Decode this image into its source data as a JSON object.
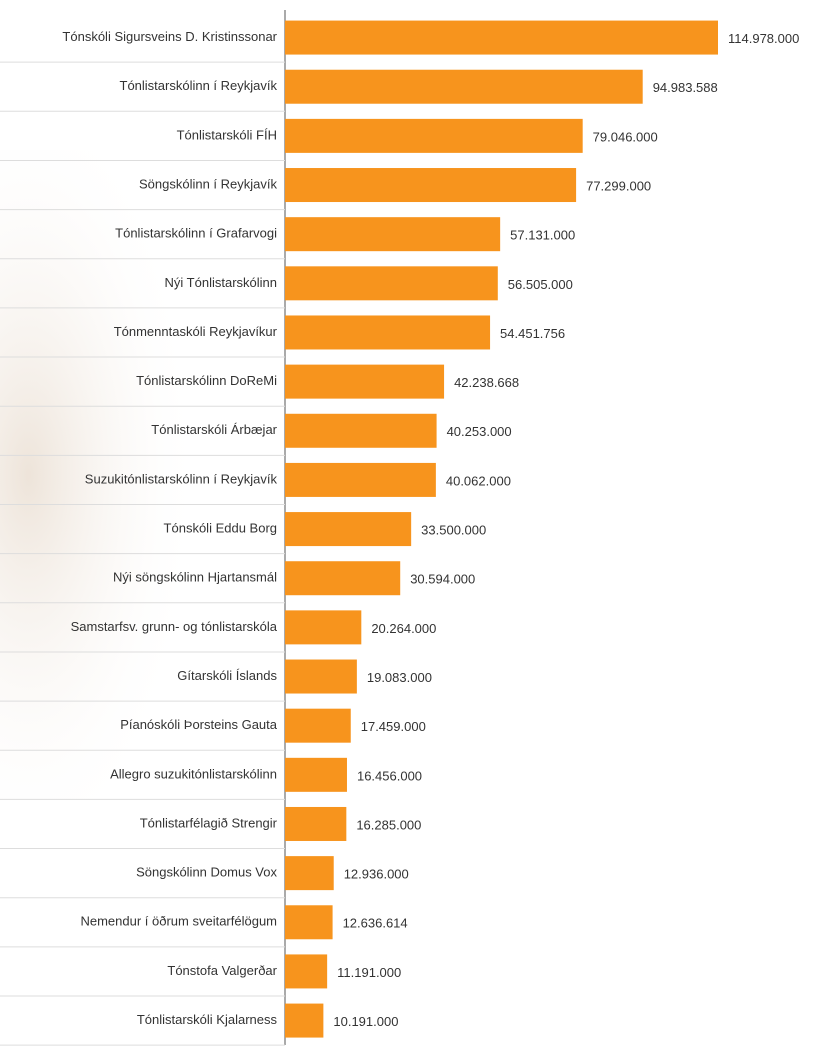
{
  "chart_data": {
    "type": "bar",
    "orientation": "horizontal",
    "color": "#f7941d",
    "categories": [
      "Tónskóli Sigursveins D. Kristinssonar",
      "Tónlistarskólinn í Reykjavík",
      "Tónlistarskóli FÍH",
      "Söngskólinn í Reykjavík",
      "Tónlistarskólinn í Grafarvogi",
      "Nýi Tónlistarskólinn",
      "Tónmenntaskóli Reykjavíkur",
      "Tónlistarskólinn DoReMi",
      "Tónlistarskóli Árbæjar",
      "Suzukitónlistarskólinn í Reykjavík",
      "Tónskóli Eddu Borg",
      "Nýi söngskólinn Hjartansmál",
      "Samstarfsv. grunn- og tónlistarskóla",
      "Gítarskóli Íslands",
      "Píanóskóli Þorsteins Gauta",
      "Allegro suzukitónlistarskólinn",
      "Tónlistarfélagið Strengir",
      "Söngskólinn Domus Vox",
      "Nemendur í öðrum sveitarfélögum",
      "Tónstofa Valgerðar",
      "Tónlistarskóli Kjalarness"
    ],
    "values": [
      114978000,
      94983588,
      79046000,
      77299000,
      57131000,
      56505000,
      54451756,
      42238668,
      40253000,
      40062000,
      33500000,
      30594000,
      20264000,
      19083000,
      17459000,
      16456000,
      16285000,
      12936000,
      12636614,
      11191000,
      10191000
    ],
    "value_labels": [
      "114.978.000",
      "94.983.588",
      "79.046.000",
      "77.299.000",
      "57.131.000",
      "56.505.000",
      "54.451.756",
      "42.238.668",
      "40.253.000",
      "40.062.000",
      "33.500.000",
      "30.594.000",
      "20.264.000",
      "19.083.000",
      "17.459.000",
      "16.456.000",
      "16.285.000",
      "12.936.000",
      "12.636.614",
      "11.191.000",
      "10.191.000"
    ]
  }
}
